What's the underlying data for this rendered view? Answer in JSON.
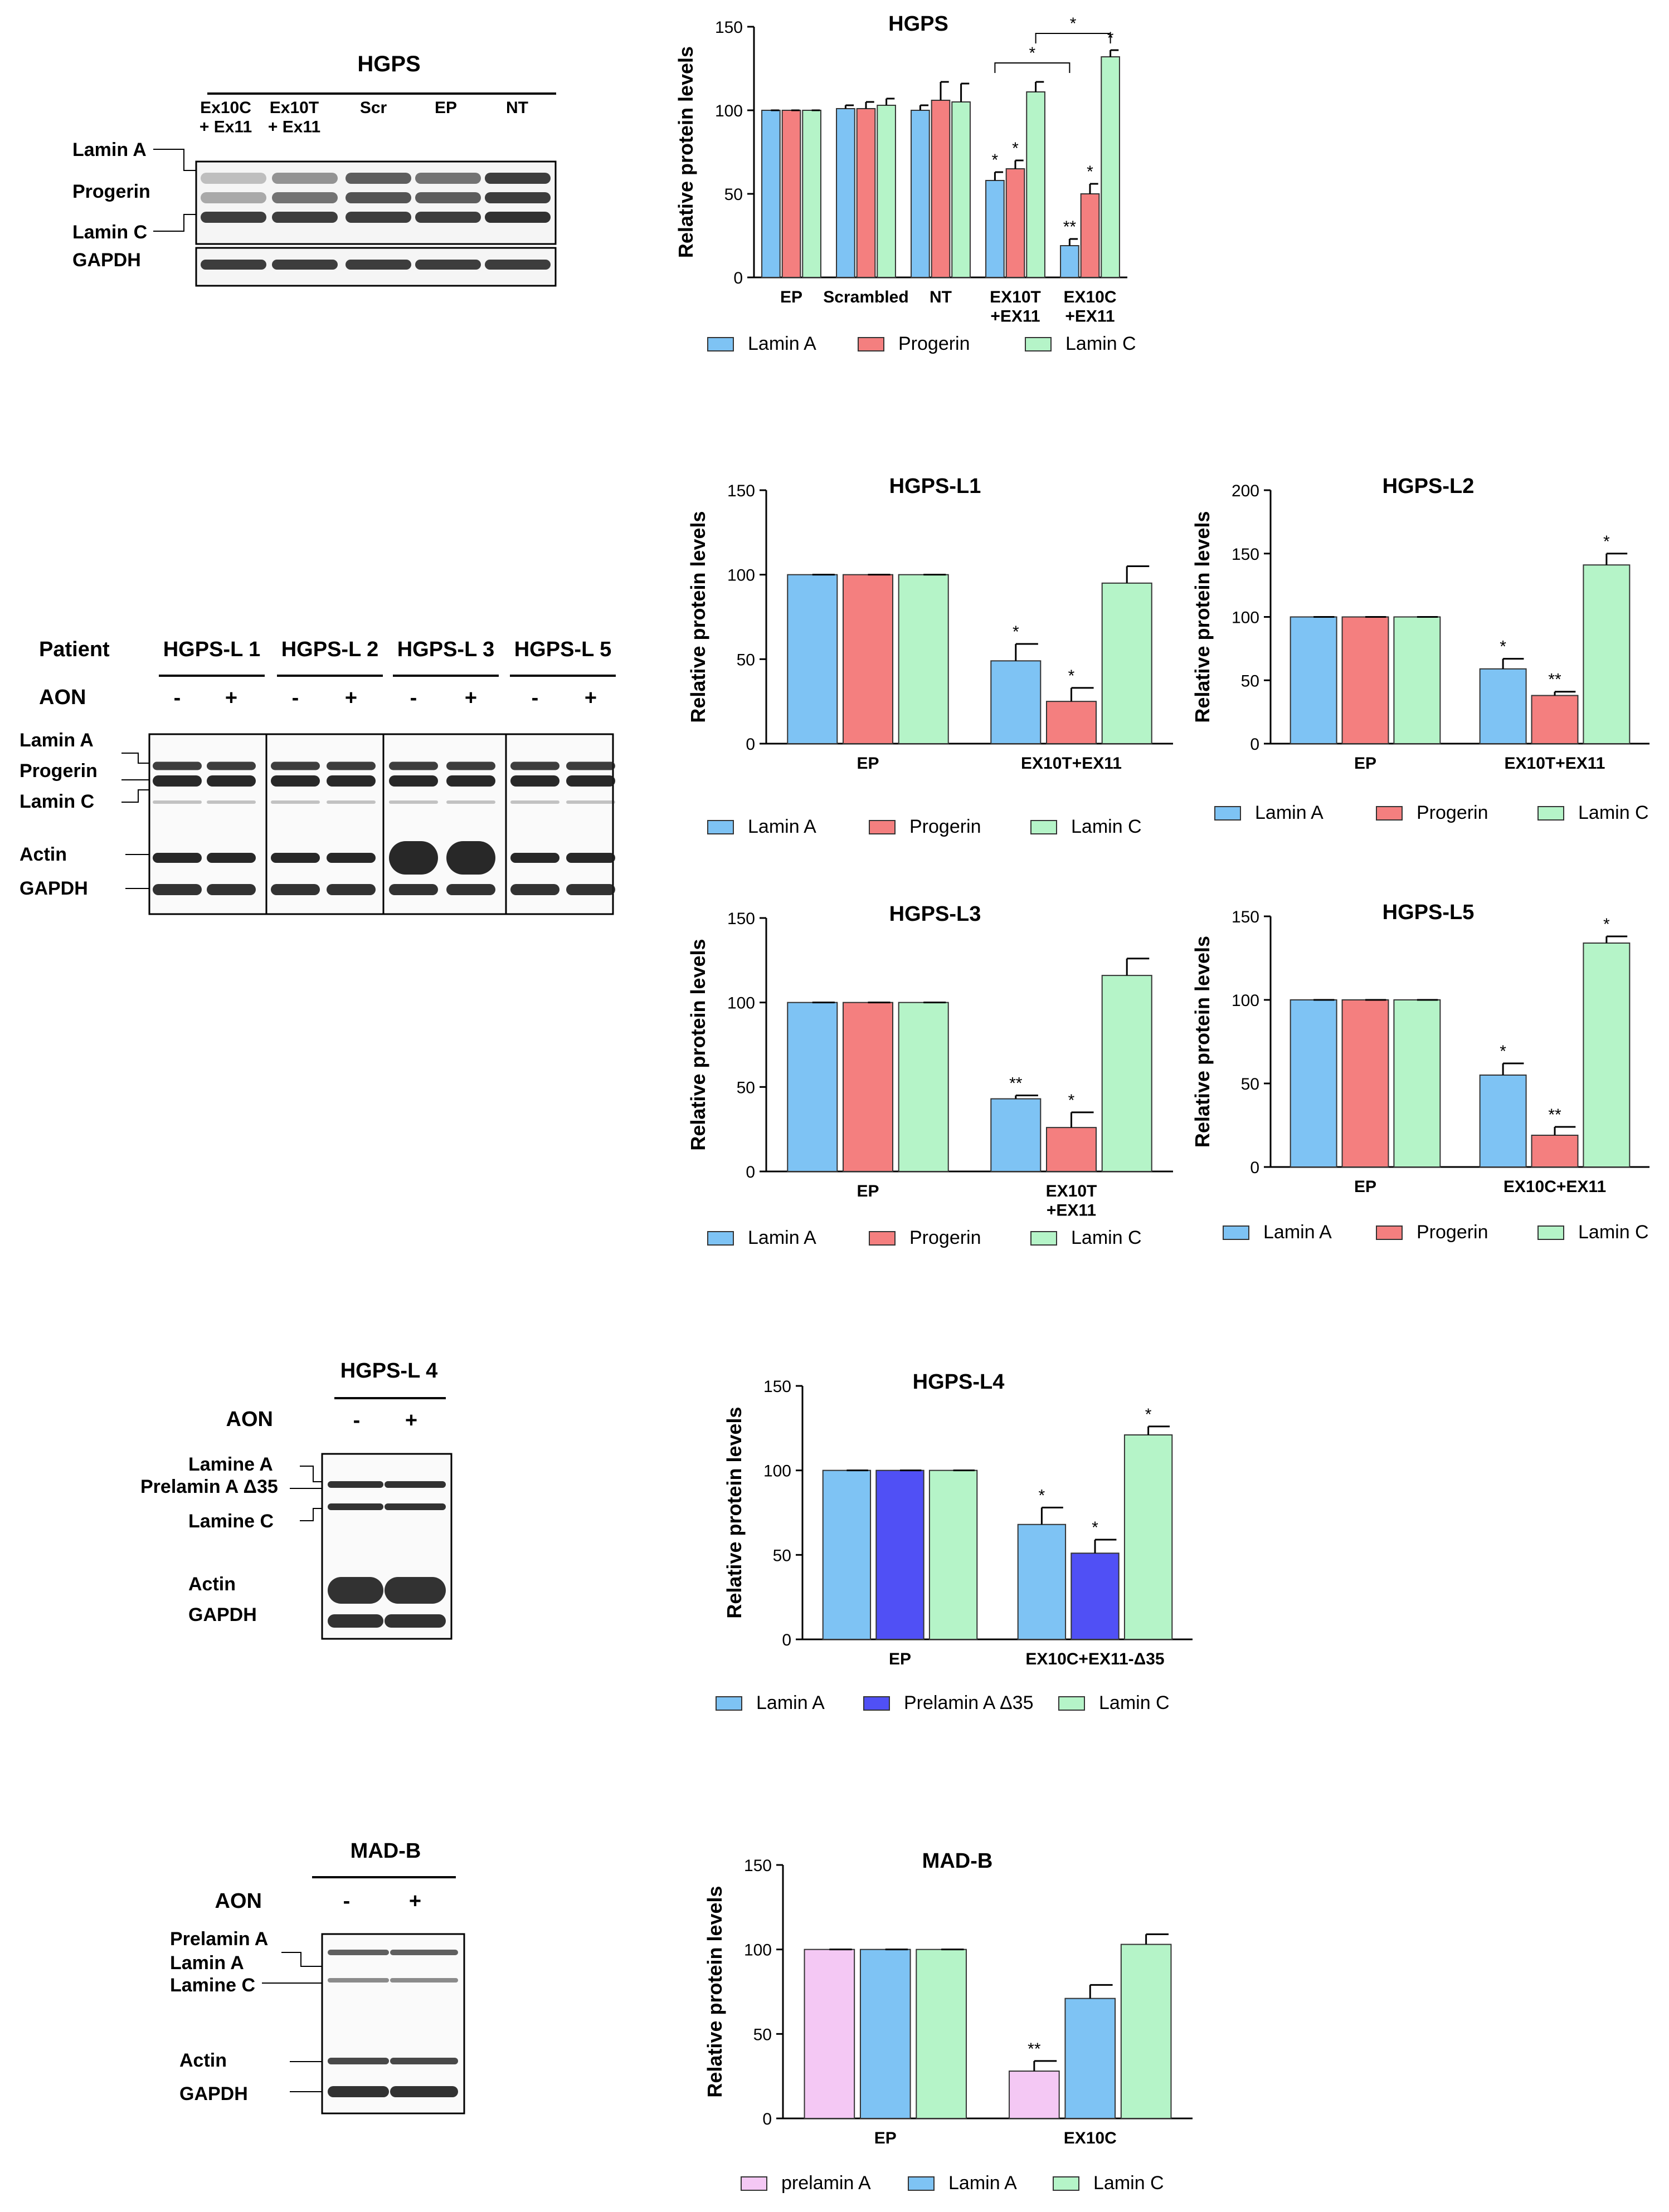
{
  "colors": {
    "lamin_a": "#7ec3f4",
    "progerin": "#f47f7f",
    "lamin_c": "#b5f4c8",
    "prelamin_d35": "#5050f5",
    "prelamin": "#f4c8f4",
    "band": "#1c1c1c"
  },
  "blots": [
    {
      "title": "HGPS",
      "lanes": [
        "Ex10C\n+ Ex11",
        "Ex10T\n+ Ex11",
        "Scr",
        "EP",
        "NT"
      ],
      "labels": [
        "Lamin A",
        "Progerin",
        "Lamin C",
        "GAPDH"
      ]
    },
    {
      "row_patient": "Patient",
      "row_aon": "AON",
      "groups": [
        "HGPS-L 1",
        "HGPS-L 2",
        "HGPS-L 3",
        "HGPS-L 5"
      ],
      "signs": [
        "-",
        "+",
        "-",
        "+",
        "-",
        "+",
        "-",
        "+"
      ],
      "labels": [
        "Lamin A",
        "Progerin",
        "Lamin C",
        "Actin",
        "GAPDH"
      ]
    },
    {
      "title": "HGPS-L 4",
      "row_aon": "AON",
      "signs": [
        "-",
        "+"
      ],
      "labels": [
        "Lamine A",
        "Prelamin A Δ35",
        "Lamine C",
        "Actin",
        "GAPDH"
      ]
    },
    {
      "title": "MAD-B",
      "row_aon": "AON",
      "signs": [
        "-",
        "+"
      ],
      "labels": [
        "Prelamin A",
        "Lamin A",
        "Lamine C",
        "Actin",
        "GAPDH"
      ]
    }
  ],
  "chart_data": [
    {
      "id": "hgps",
      "type": "bar",
      "title": "HGPS",
      "ylabel": "Relative protein levels",
      "ylim": [
        0,
        150
      ],
      "yticks": [
        0,
        50,
        100,
        150
      ],
      "categories": [
        "EP",
        "Scrambled",
        "NT",
        "EX10T\n+EX11",
        "EX10C\n+EX11"
      ],
      "series": [
        {
          "name": "Lamin A",
          "color_key": "lamin_a",
          "values": [
            100,
            101,
            100,
            58,
            19
          ],
          "errors": [
            0,
            2,
            3,
            5,
            4
          ],
          "sig": [
            "",
            "",
            "",
            "*",
            "**"
          ]
        },
        {
          "name": "Progerin",
          "color_key": "progerin",
          "values": [
            100,
            101,
            106,
            65,
            50
          ],
          "errors": [
            0,
            4,
            11,
            5,
            6
          ],
          "sig": [
            "",
            "",
            "",
            "*",
            "*"
          ]
        },
        {
          "name": "Lamin C",
          "color_key": "lamin_c",
          "values": [
            100,
            103,
            105,
            111,
            132
          ],
          "errors": [
            0,
            4,
            11,
            6,
            4
          ],
          "sig": [
            "",
            "",
            "",
            "",
            "*"
          ]
        }
      ],
      "brackets": [
        {
          "label": "*",
          "from_category": 3,
          "to_category": 4,
          "level": 1
        },
        {
          "label": "*",
          "from_category": 3,
          "to_category": 4,
          "level": 2
        }
      ]
    },
    {
      "id": "l1",
      "type": "bar",
      "title": "HGPS-L1",
      "ylabel": "Relative protein levels",
      "ylim": [
        0,
        150
      ],
      "yticks": [
        0,
        50,
        100,
        150
      ],
      "categories": [
        "EP",
        "EX10T+EX11"
      ],
      "series": [
        {
          "name": "Lamin A",
          "color_key": "lamin_a",
          "values": [
            100,
            49
          ],
          "errors": [
            0,
            10
          ],
          "sig": [
            "",
            "*"
          ]
        },
        {
          "name": "Progerin",
          "color_key": "progerin",
          "values": [
            100,
            25
          ],
          "errors": [
            0,
            8
          ],
          "sig": [
            "",
            "*"
          ]
        },
        {
          "name": "Lamin C",
          "color_key": "lamin_c",
          "values": [
            100,
            95
          ],
          "errors": [
            0,
            10
          ],
          "sig": [
            "",
            ""
          ]
        }
      ]
    },
    {
      "id": "l2",
      "type": "bar",
      "title": "HGPS-L2",
      "ylabel": "Relative protein levels",
      "ylim": [
        0,
        200
      ],
      "yticks": [
        0,
        50,
        100,
        150,
        200
      ],
      "categories": [
        "EP",
        "EX10T+EX11"
      ],
      "series": [
        {
          "name": "Lamin A",
          "color_key": "lamin_a",
          "values": [
            100,
            59
          ],
          "errors": [
            0,
            8
          ],
          "sig": [
            "",
            "*"
          ]
        },
        {
          "name": "Progerin",
          "color_key": "progerin",
          "values": [
            100,
            38
          ],
          "errors": [
            0,
            3
          ],
          "sig": [
            "",
            "**"
          ]
        },
        {
          "name": "Lamin C",
          "color_key": "lamin_c",
          "values": [
            100,
            141
          ],
          "errors": [
            0,
            9
          ],
          "sig": [
            "",
            "*"
          ]
        }
      ]
    },
    {
      "id": "l3",
      "type": "bar",
      "title": "HGPS-L3",
      "ylabel": "Relative protein levels",
      "ylim": [
        0,
        150
      ],
      "yticks": [
        0,
        50,
        100,
        150
      ],
      "categories": [
        "EP",
        "EX10T\n+EX11"
      ],
      "series": [
        {
          "name": "Lamin A",
          "color_key": "lamin_a",
          "values": [
            100,
            43
          ],
          "errors": [
            0,
            2
          ],
          "sig": [
            "",
            "**"
          ]
        },
        {
          "name": "Progerin",
          "color_key": "progerin",
          "values": [
            100,
            26
          ],
          "errors": [
            0,
            9
          ],
          "sig": [
            "",
            "*"
          ]
        },
        {
          "name": "Lamin C",
          "color_key": "lamin_c",
          "values": [
            100,
            116
          ],
          "errors": [
            0,
            10
          ],
          "sig": [
            "",
            ""
          ]
        }
      ]
    },
    {
      "id": "l5",
      "type": "bar",
      "title": "HGPS-L5",
      "ylabel": "Relative protein levels",
      "ylim": [
        0,
        150
      ],
      "yticks": [
        0,
        50,
        100,
        150
      ],
      "categories": [
        "EP",
        "EX10C+EX11"
      ],
      "series": [
        {
          "name": "Lamin A",
          "color_key": "lamin_a",
          "values": [
            100,
            55
          ],
          "errors": [
            0,
            7
          ],
          "sig": [
            "",
            "*"
          ]
        },
        {
          "name": "Progerin",
          "color_key": "progerin",
          "values": [
            100,
            19
          ],
          "errors": [
            0,
            5
          ],
          "sig": [
            "",
            "**"
          ]
        },
        {
          "name": "Lamin C",
          "color_key": "lamin_c",
          "values": [
            100,
            134
          ],
          "errors": [
            0,
            4
          ],
          "sig": [
            "",
            "*"
          ]
        }
      ]
    },
    {
      "id": "l4",
      "type": "bar",
      "title": "HGPS-L4",
      "ylabel": "Relative protein levels",
      "ylim": [
        0,
        150
      ],
      "yticks": [
        0,
        50,
        100,
        150
      ],
      "categories": [
        "EP",
        "EX10C+EX11-Δ35"
      ],
      "series": [
        {
          "name": "Lamin A",
          "color_key": "lamin_a",
          "values": [
            100,
            68
          ],
          "errors": [
            0,
            10
          ],
          "sig": [
            "",
            "*"
          ]
        },
        {
          "name": "Prelamin A Δ35",
          "color_key": "prelamin_d35",
          "values": [
            100,
            51
          ],
          "errors": [
            0,
            8
          ],
          "sig": [
            "",
            "*"
          ]
        },
        {
          "name": "Lamin C",
          "color_key": "lamin_c",
          "values": [
            100,
            121
          ],
          "errors": [
            0,
            5
          ],
          "sig": [
            "",
            "*"
          ]
        }
      ]
    },
    {
      "id": "madb",
      "type": "bar",
      "title": "MAD-B",
      "ylabel": "Relative protein levels",
      "ylim": [
        0,
        150
      ],
      "yticks": [
        0,
        50,
        100,
        150
      ],
      "categories": [
        "EP",
        "EX10C"
      ],
      "series": [
        {
          "name": "prelamin A",
          "color_key": "prelamin",
          "values": [
            100,
            28
          ],
          "errors": [
            0,
            6
          ],
          "sig": [
            "",
            "**"
          ]
        },
        {
          "name": "Lamin A",
          "color_key": "lamin_a",
          "values": [
            100,
            71
          ],
          "errors": [
            0,
            8
          ],
          "sig": [
            "",
            ""
          ]
        },
        {
          "name": "Lamin C",
          "color_key": "lamin_c",
          "values": [
            100,
            103
          ],
          "errors": [
            0,
            6
          ],
          "sig": [
            "",
            ""
          ]
        }
      ]
    }
  ]
}
